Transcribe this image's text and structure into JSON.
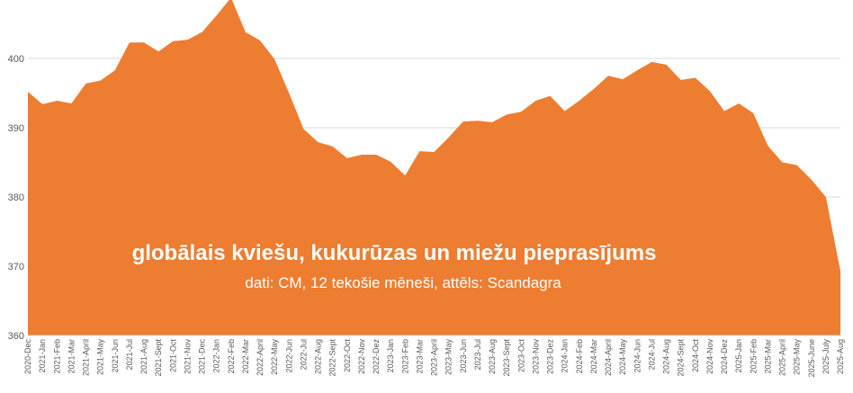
{
  "chart_data": {
    "type": "area",
    "title": "globālais kviešu, kukurūzas un miežu pieprasījums",
    "subtitle": "dati: CM, 12 tekošie mēneši, attēls: Scandagra",
    "ylim": [
      360,
      410
    ],
    "yticks": [
      360,
      370,
      380,
      390,
      400
    ],
    "grid": true,
    "color": "#ED7D31",
    "categories": [
      "2020-Dec",
      "2021-Jan",
      "2021-Feb",
      "2021-Mar",
      "2021-April",
      "2021-May",
      "2021-Jun",
      "2021-Jul",
      "2021-Aug",
      "2021-Sept",
      "2021-Oct",
      "2021-Nov",
      "2021-Dec",
      "2022-Jan",
      "2022-Feb",
      "2022-Mar",
      "2022-April",
      "2022-May",
      "2022-Jun",
      "2022-Jul",
      "2022-Aug",
      "2022-Sept",
      "2022-Oct",
      "2022-Nov",
      "2022-Dez",
      "2023-Jan",
      "2023-Feb",
      "2023-Mar",
      "2023-April",
      "2023-May",
      "2023-Jun",
      "2023-Jul",
      "2023-Aug",
      "2023-Sept",
      "2023-Oct",
      "2023-Nov",
      "2023-Dez",
      "2024-Jan",
      "2024-Feb",
      "2024-Mar",
      "2024-April",
      "2024-May",
      "2024-Jun",
      "2024-Jul",
      "2024-Aug",
      "2024-Sept",
      "2024-Oct",
      "2024-Nov",
      "2024-Dez",
      "2025-Jan",
      "2025-Feb",
      "2025-Mar",
      "2025-April",
      "2025-May",
      "2025-June",
      "2025-July",
      "2025-Aug"
    ],
    "values": [
      395.2,
      393.4,
      393.9,
      393.5,
      396.4,
      396.8,
      398.3,
      402.3,
      402.3,
      401.0,
      402.5,
      402.7,
      403.8,
      406.2,
      408.8,
      403.8,
      402.6,
      399.9,
      395.0,
      389.8,
      387.9,
      387.3,
      385.6,
      386.1,
      386.1,
      385.1,
      383.1,
      386.6,
      386.5,
      388.6,
      390.9,
      391.0,
      390.8,
      391.9,
      392.3,
      393.9,
      394.6,
      392.4,
      393.9,
      395.6,
      397.5,
      397.0,
      398.3,
      399.5,
      399.1,
      396.9,
      397.2,
      395.3,
      392.4,
      393.5,
      392.1,
      387.4,
      385.0,
      384.6,
      382.5,
      380.0,
      369.3
    ]
  }
}
